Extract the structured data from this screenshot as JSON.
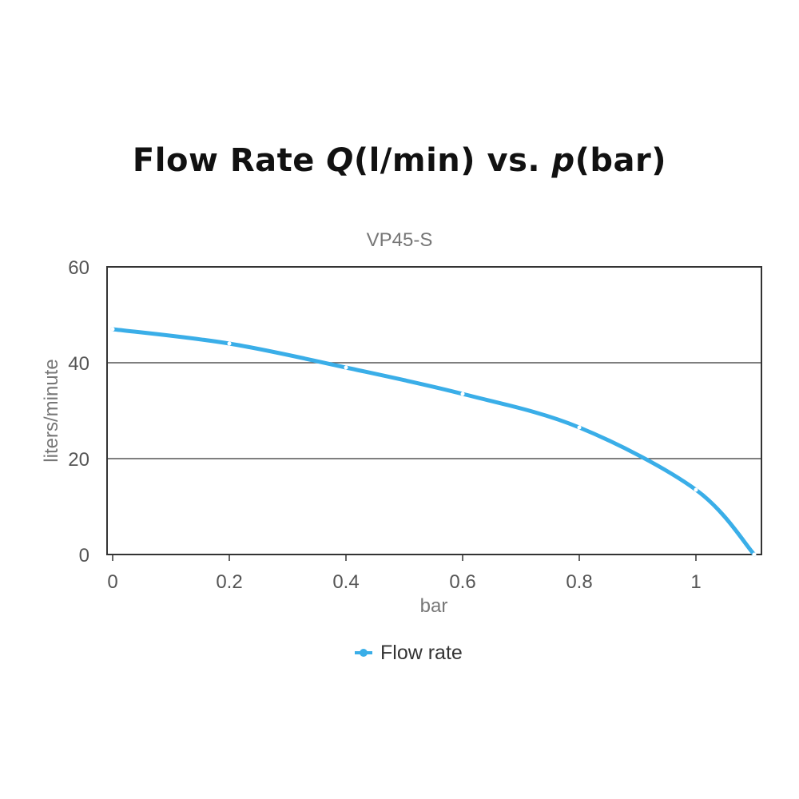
{
  "title": {
    "prefix": "Flow Rate ",
    "q": "Q",
    "middle": "(l/min) vs. ",
    "p": "p",
    "suffix": "(bar)"
  },
  "chart_data": {
    "type": "line",
    "subtitle": "VP45-S",
    "xlabel": "bar",
    "ylabel": "liters/minute",
    "xlim": [
      0,
      1.1
    ],
    "ylim": [
      0,
      60
    ],
    "xticks": [
      0,
      0.2,
      0.4,
      0.6,
      0.8,
      1
    ],
    "xtick_labels": [
      "0",
      "0.2",
      "0.4",
      "0.6",
      "0.8",
      "1"
    ],
    "yticks": [
      0,
      20,
      40,
      60
    ],
    "ytick_labels": [
      "0",
      "20",
      "40",
      "60"
    ],
    "grid": "horizontal",
    "legend_position": "bottom",
    "series": [
      {
        "name": "Flow rate",
        "color": "#3aaee8",
        "x": [
          0,
          0.2,
          0.4,
          0.6,
          0.8,
          1,
          1.1
        ],
        "y": [
          47,
          44,
          39,
          33.5,
          26.5,
          13.5,
          0
        ]
      }
    ]
  }
}
